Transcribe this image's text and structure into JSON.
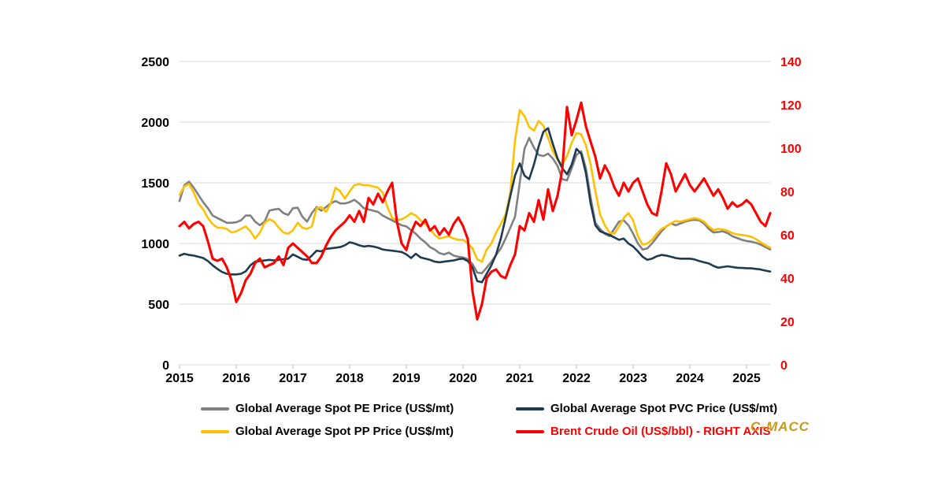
{
  "watermark": "C-MACC",
  "chart_data": {
    "type": "line",
    "title": "",
    "x_interval": "monthly",
    "x_start": 2015.0,
    "x_step_years": 0.0833333,
    "x_ticks": [
      2015,
      2016,
      2017,
      2018,
      2019,
      2020,
      2021,
      2022,
      2023,
      2024,
      2025
    ],
    "left_axis": {
      "max": 2500,
      "ticks": [
        0,
        500,
        1000,
        1500,
        2000,
        2500
      ],
      "color": "#000000"
    },
    "right_axis": {
      "max": 140,
      "ticks": [
        0,
        20,
        40,
        60,
        80,
        100,
        120,
        140
      ],
      "color": "#FF0000"
    },
    "grid_color": "#D9D9D9",
    "tick_color": "#BFBFBF",
    "legend_position": "bottom",
    "series": [
      {
        "id": "pe",
        "name": "Global Average Spot PE Price (US$/mt)",
        "axis": "left",
        "color": "#808080",
        "values": [
          1350,
          1480,
          1510,
          1460,
          1400,
          1340,
          1290,
          1230,
          1210,
          1190,
          1170,
          1170,
          1175,
          1190,
          1230,
          1230,
          1180,
          1150,
          1180,
          1270,
          1280,
          1285,
          1250,
          1235,
          1290,
          1295,
          1220,
          1180,
          1250,
          1300,
          1270,
          1300,
          1330,
          1350,
          1330,
          1330,
          1340,
          1360,
          1330,
          1290,
          1280,
          1270,
          1260,
          1230,
          1210,
          1190,
          1170,
          1150,
          1140,
          1110,
          1080,
          1040,
          1010,
          970,
          950,
          920,
          910,
          925,
          900,
          890,
          885,
          870,
          830,
          760,
          755,
          800,
          850,
          905,
          960,
          1040,
          1130,
          1220,
          1500,
          1780,
          1870,
          1790,
          1730,
          1720,
          1740,
          1700,
          1640,
          1530,
          1520,
          1620,
          1730,
          1760,
          1620,
          1380,
          1170,
          1120,
          1080,
          1060,
          1120,
          1180,
          1190,
          1150,
          1080,
          1000,
          950,
          960,
          1000,
          1050,
          1100,
          1140,
          1165,
          1150,
          1165,
          1180,
          1190,
          1195,
          1190,
          1165,
          1120,
          1090,
          1095,
          1100,
          1085,
          1060,
          1045,
          1030,
          1020,
          1015,
          1005,
          990,
          970,
          950
        ]
      },
      {
        "id": "pp",
        "name": "Global Average Spot PP Price (US$/mt)",
        "axis": "left",
        "color": "#FFC000",
        "values": [
          1400,
          1470,
          1490,
          1420,
          1330,
          1280,
          1210,
          1160,
          1130,
          1130,
          1120,
          1090,
          1100,
          1120,
          1140,
          1100,
          1040,
          1090,
          1170,
          1200,
          1180,
          1130,
          1090,
          1080,
          1110,
          1170,
          1130,
          1120,
          1140,
          1290,
          1300,
          1260,
          1330,
          1460,
          1430,
          1370,
          1430,
          1480,
          1490,
          1480,
          1480,
          1470,
          1460,
          1420,
          1300,
          1210,
          1190,
          1200,
          1220,
          1250,
          1230,
          1190,
          1160,
          1120,
          1070,
          1040,
          1050,
          1060,
          1040,
          1030,
          1030,
          1000,
          960,
          870,
          850,
          950,
          1000,
          1090,
          1160,
          1240,
          1420,
          1850,
          2100,
          2050,
          1960,
          1930,
          2010,
          1970,
          1870,
          1760,
          1690,
          1650,
          1720,
          1830,
          1910,
          1900,
          1810,
          1650,
          1430,
          1240,
          1150,
          1090,
          1080,
          1140,
          1210,
          1250,
          1190,
          1060,
          990,
          1000,
          1030,
          1080,
          1120,
          1140,
          1165,
          1185,
          1180,
          1190,
          1200,
          1210,
          1200,
          1180,
          1140,
          1110,
          1120,
          1115,
          1105,
          1085,
          1075,
          1070,
          1065,
          1055,
          1035,
          1010,
          985,
          965
        ]
      },
      {
        "id": "pvc",
        "name": "Global Average Spot PVC Price (US$/mt)",
        "axis": "left",
        "color": "#1D3A52",
        "values": [
          900,
          915,
          905,
          900,
          890,
          880,
          855,
          820,
          790,
          765,
          750,
          745,
          745,
          750,
          770,
          820,
          850,
          855,
          860,
          865,
          860,
          865,
          870,
          875,
          910,
          890,
          870,
          865,
          900,
          940,
          935,
          955,
          960,
          965,
          970,
          985,
          1010,
          1000,
          985,
          975,
          980,
          975,
          965,
          950,
          945,
          940,
          935,
          930,
          910,
          880,
          915,
          885,
          875,
          865,
          850,
          845,
          850,
          855,
          860,
          870,
          875,
          855,
          800,
          690,
          680,
          750,
          820,
          910,
          1040,
          1210,
          1390,
          1560,
          1660,
          1560,
          1530,
          1650,
          1800,
          1920,
          1950,
          1820,
          1700,
          1620,
          1570,
          1650,
          1780,
          1740,
          1580,
          1330,
          1150,
          1100,
          1085,
          1070,
          1050,
          1030,
          1040,
          1000,
          975,
          935,
          890,
          865,
          875,
          895,
          905,
          900,
          890,
          880,
          875,
          875,
          875,
          868,
          855,
          845,
          835,
          815,
          800,
          806,
          812,
          806,
          800,
          798,
          796,
          795,
          790,
          785,
          776,
          768
        ]
      },
      {
        "id": "brent",
        "name": "Brent Crude Oil (US$/bbl) - RIGHT AXIS",
        "axis": "right",
        "color": "#FF0000",
        "legend_text_color": "#FF0000",
        "values": [
          64,
          66,
          63,
          65,
          66,
          64,
          57,
          49,
          48,
          49,
          45,
          39,
          29,
          33,
          39,
          42,
          47,
          49,
          45,
          46,
          47,
          50,
          46,
          54,
          56,
          54,
          52,
          50,
          47,
          47,
          50,
          55,
          59,
          62,
          64,
          66,
          69,
          66,
          71,
          66,
          77,
          74,
          79,
          75,
          80,
          84,
          66,
          56,
          53,
          61,
          66,
          64,
          67,
          62,
          64,
          60,
          63,
          60,
          65,
          68,
          64,
          58,
          34,
          21,
          28,
          40,
          43,
          44,
          41,
          40,
          46,
          51,
          64,
          62,
          70,
          66,
          76,
          67,
          81,
          71,
          78,
          90,
          119,
          106,
          113,
          121,
          110,
          103,
          96,
          86,
          92,
          88,
          82,
          78,
          84,
          80,
          84,
          86,
          80,
          74,
          70,
          69,
          80,
          93,
          88,
          80,
          84,
          88,
          83,
          80,
          83,
          86,
          82,
          78,
          81,
          77,
          72,
          75,
          73,
          74,
          76,
          74,
          70,
          66,
          64,
          70
        ]
      }
    ]
  }
}
